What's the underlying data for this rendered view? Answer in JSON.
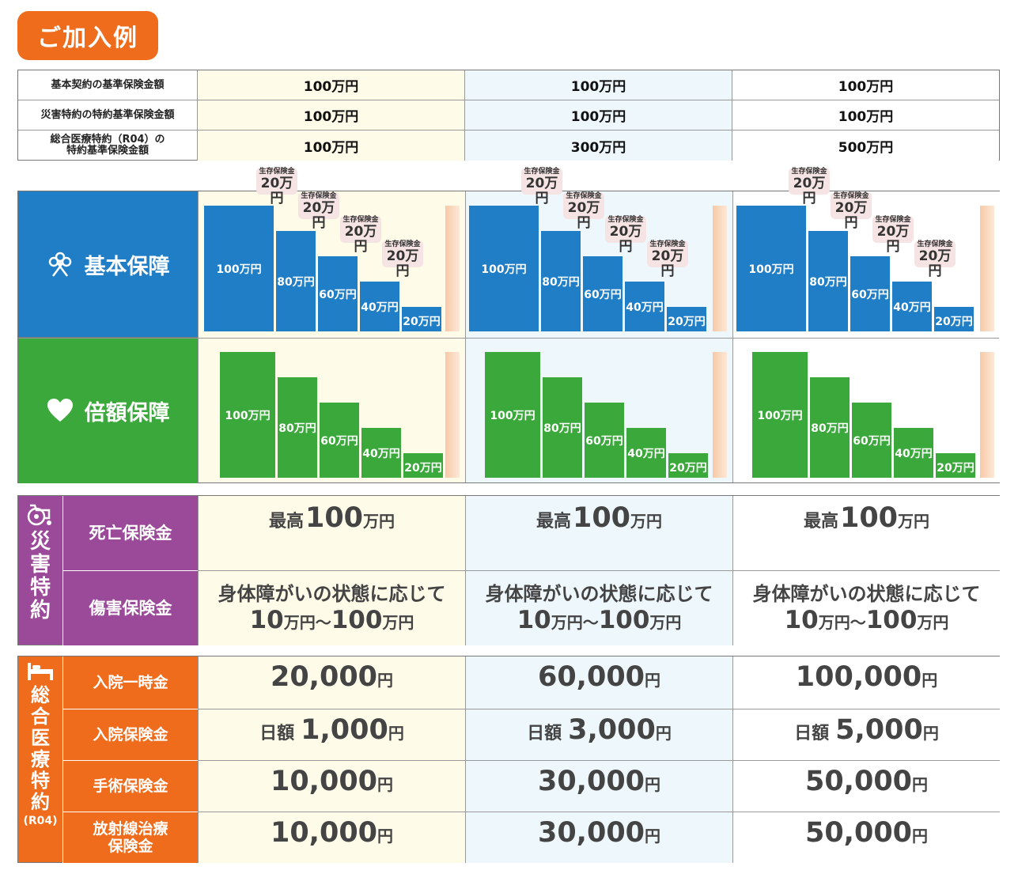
{
  "title": "ご加入例",
  "top_table": {
    "rows": [
      {
        "label": "基本契約の基準保険金額",
        "values": [
          "100万円",
          "100万円",
          "100万円"
        ]
      },
      {
        "label": "災害特約の特約基準保険金額",
        "values": [
          "100万円",
          "100万円",
          "100万円"
        ]
      },
      {
        "label_l1": "総合医療特約（R04）の",
        "label_l2": "特約基準保険金額",
        "values": [
          "100万円",
          "300万円",
          "500万円"
        ]
      }
    ]
  },
  "basic": {
    "label": "基本保障",
    "bar_labels": [
      "100万円",
      "80万円",
      "60万円",
      "40万円",
      "20万円"
    ],
    "bubble_small": "生存保険金",
    "bubble_big": "20万円"
  },
  "double": {
    "label": "倍額保障",
    "bar_labels": [
      "100万円",
      "80万円",
      "60万円",
      "40万円",
      "20万円"
    ]
  },
  "disaster": {
    "label": "災害特約",
    "death_label": "死亡保険金",
    "injury_label": "傷害保険金",
    "death_prefix": "最高",
    "death_amount": "100",
    "death_unit": "万円",
    "injury_line1": "身体障がいの状態に応じて",
    "injury_a": "10",
    "injury_unit_a": "万円〜",
    "injury_b": "100",
    "injury_unit_b": "万円"
  },
  "medical": {
    "label": "総合医療特約",
    "label_sub": "(R04)",
    "rows": [
      {
        "label": "入院一時金",
        "values": [
          "20,000",
          "60,000",
          "100,000"
        ]
      },
      {
        "label": "入院保険金",
        "prefix": "日額",
        "values": [
          "1,000",
          "3,000",
          "5,000"
        ]
      },
      {
        "label": "手術保険金",
        "values": [
          "10,000",
          "30,000",
          "50,000"
        ]
      },
      {
        "label_l1": "放射線治療",
        "label_l2": "保険金",
        "values": [
          "10,000",
          "30,000",
          "50,000"
        ]
      }
    ],
    "unit": "円"
  },
  "colors": {
    "orange": "#ee6c1b",
    "blue": "#1f7ec6",
    "green": "#3aa83a",
    "purple": "#9b4a99",
    "col1_bg": "#fefbe9",
    "col2_bg": "#eef7fc"
  },
  "icons": [
    "flower-icon",
    "heart-icon",
    "wheelchair-icon",
    "bed-icon"
  ]
}
